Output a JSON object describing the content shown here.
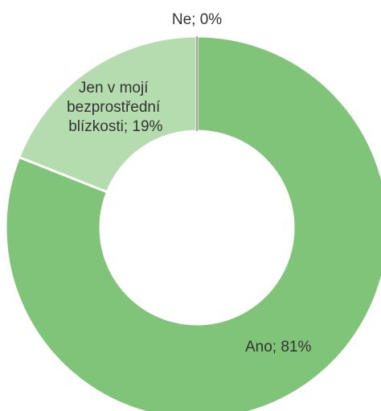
{
  "chart_data": {
    "type": "donut",
    "values": [
      81,
      19,
      0
    ],
    "value_labels": [
      "Ano; 81%",
      "Jen v mojí bezprostřední blízkosti; 19%",
      "Ne; 0%"
    ],
    "colors": [
      "#80c47a",
      "#b5dcae",
      "#a6a6a6"
    ]
  }
}
